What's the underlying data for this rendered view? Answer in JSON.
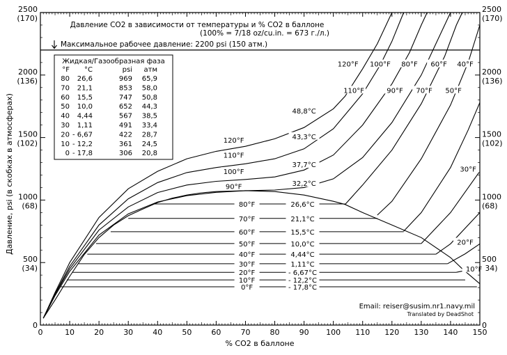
{
  "title": "Давление CO2 в зависимости от температуры и % CO2 в баллоне",
  "subtitle": "(100% = 7/18 oz/cu.in. = 673 г./л.)",
  "max_pressure_note": "Максимальное рабочее давление: 2200 psi (150 атм.)",
  "email": "Email: reiser@susim.nr1.navy.mil",
  "credit": "Translated by DeadShot",
  "legend_table": {
    "title": "Жидкая/Газообразная фаза",
    "headers": [
      "°F",
      "°C",
      "psi",
      "атм"
    ],
    "rows": [
      [
        "80",
        "26,6",
        "969",
        "65,9"
      ],
      [
        "70",
        "21,1",
        "853",
        "58,0"
      ],
      [
        "60",
        "15,5",
        "747",
        "50,8"
      ],
      [
        "50",
        "10,0",
        "652",
        "44,3"
      ],
      [
        "40",
        "4,44",
        "567",
        "38,5"
      ],
      [
        "30",
        "1,11",
        "491",
        "33,4"
      ],
      [
        "20",
        "- 6,67",
        "422",
        "28,7"
      ],
      [
        "10",
        "- 12,2",
        "361",
        "24,5"
      ],
      [
        "0",
        "- 17,8",
        "306",
        "20,8"
      ]
    ]
  },
  "chart_data": {
    "type": "line",
    "xlabel": "% CO2 в баллоне",
    "ylabel": "Давление, psi (в скобках в атмосферах)",
    "xlim": [
      0,
      150
    ],
    "ylim": [
      0,
      2500
    ],
    "x_ticks": [
      "0",
      "10",
      "20",
      "30",
      "40",
      "50",
      "60",
      "70",
      "80",
      "90",
      "100",
      "110",
      "120",
      "130",
      "140",
      "150"
    ],
    "y_ticks_left": [
      {
        "value": 0,
        "psi": "0",
        "atm": ""
      },
      {
        "value": 500,
        "psi": "500",
        "atm": "(34)"
      },
      {
        "value": 1000,
        "psi": "1000",
        "atm": "(68)"
      },
      {
        "value": 1500,
        "psi": "1500",
        "atm": "(102)"
      },
      {
        "value": 2000,
        "psi": "2000",
        "atm": "(136)"
      },
      {
        "value": 2500,
        "psi": "2500",
        "atm": "(170)"
      }
    ],
    "max_working_pressure": 2200,
    "saturation_dome": [
      [
        1,
        55
      ],
      [
        5,
        200
      ],
      [
        10,
        390
      ],
      [
        15,
        565
      ],
      [
        20,
        700
      ],
      [
        25,
        800
      ],
      [
        30,
        875
      ],
      [
        35,
        928
      ],
      [
        40,
        980
      ],
      [
        45,
        1015
      ],
      [
        50,
        1040
      ],
      [
        55,
        1058
      ],
      [
        60,
        1068
      ],
      [
        70,
        1075
      ],
      [
        80,
        1068
      ],
      [
        90,
        1040
      ],
      [
        100,
        990
      ],
      [
        104,
        965
      ],
      [
        110,
        900
      ],
      [
        120,
        800
      ],
      [
        130,
        700
      ],
      [
        140,
        540
      ],
      [
        144,
        450
      ],
      [
        150,
        330
      ]
    ],
    "two_phase_isotherms": [
      {
        "label_f": "80°F",
        "label_c": "26,6°C",
        "psi": 969,
        "x_start": 39,
        "x_end": 104
      },
      {
        "label_f": "70°F",
        "label_c": "21,1°C",
        "psi": 853,
        "x_start": 30,
        "x_end": 115
      },
      {
        "label_f": "60°F",
        "label_c": "15,5°C",
        "psi": 747,
        "x_start": 24,
        "x_end": 124
      },
      {
        "label_f": "50°F",
        "label_c": "10,0°C",
        "psi": 652,
        "x_start": 19,
        "x_end": 130
      },
      {
        "label_f": "40°F",
        "label_c": "4,44°C",
        "psi": 567,
        "x_start": 16,
        "x_end": 135
      },
      {
        "label_f": "30°F",
        "label_c": "1,11°C",
        "psi": 491,
        "x_start": 13,
        "x_end": 139
      },
      {
        "label_f": "20°F",
        "label_c": "- 6,67°C",
        "psi": 422,
        "x_start": 11,
        "x_end": 142
      },
      {
        "label_f": "10°F",
        "label_c": "- 12,2°C",
        "psi": 361,
        "x_start": 9,
        "x_end": 145
      },
      {
        "label_f": "0°F",
        "label_c": "- 17,8°C",
        "psi": 306,
        "x_start": 7,
        "x_end": 149
      }
    ],
    "gas_isotherms": [
      {
        "label_f": "120°F",
        "label_c": "48,8°C",
        "points": [
          [
            1,
            55
          ],
          [
            5,
            260
          ],
          [
            10,
            500
          ],
          [
            20,
            860
          ],
          [
            30,
            1090
          ],
          [
            40,
            1230
          ],
          [
            50,
            1330
          ],
          [
            60,
            1390
          ],
          [
            70,
            1430
          ],
          [
            80,
            1490
          ],
          [
            90,
            1580
          ],
          [
            100,
            1730
          ],
          [
            104,
            1830
          ],
          [
            110,
            2050
          ],
          [
            115,
            2250
          ],
          [
            118,
            2400
          ],
          [
            120,
            2500
          ]
        ]
      },
      {
        "label_f": "110°F",
        "label_c": "43,3°C",
        "points": [
          [
            1,
            55
          ],
          [
            5,
            250
          ],
          [
            10,
            470
          ],
          [
            20,
            800
          ],
          [
            30,
            1010
          ],
          [
            40,
            1140
          ],
          [
            50,
            1220
          ],
          [
            60,
            1260
          ],
          [
            70,
            1290
          ],
          [
            80,
            1330
          ],
          [
            90,
            1410
          ],
          [
            100,
            1570
          ],
          [
            110,
            1850
          ],
          [
            116,
            2080
          ],
          [
            120,
            2270
          ],
          [
            124,
            2500
          ]
        ]
      },
      {
        "label_f": "100°F",
        "label_c": "37,7°C",
        "points": [
          [
            1,
            55
          ],
          [
            5,
            245
          ],
          [
            10,
            450
          ],
          [
            20,
            760
          ],
          [
            30,
            945
          ],
          [
            40,
            1060
          ],
          [
            50,
            1120
          ],
          [
            60,
            1150
          ],
          [
            70,
            1165
          ],
          [
            80,
            1185
          ],
          [
            90,
            1240
          ],
          [
            100,
            1360
          ],
          [
            110,
            1600
          ],
          [
            120,
            1930
          ],
          [
            126,
            2180
          ],
          [
            130,
            2400
          ],
          [
            132,
            2500
          ]
        ]
      },
      {
        "label_f": "90°F",
        "label_c": "32,2°C",
        "points": [
          [
            1,
            55
          ],
          [
            5,
            235
          ],
          [
            10,
            430
          ],
          [
            20,
            720
          ],
          [
            30,
            890
          ],
          [
            40,
            985
          ],
          [
            50,
            1035
          ],
          [
            60,
            1062
          ],
          [
            70,
            1075
          ],
          [
            80,
            1080
          ],
          [
            90,
            1100
          ],
          [
            100,
            1170
          ],
          [
            110,
            1340
          ],
          [
            120,
            1620
          ],
          [
            130,
            2000
          ],
          [
            135,
            2250
          ],
          [
            138,
            2400
          ],
          [
            140,
            2500
          ]
        ]
      },
      {
        "label_f": "",
        "label_c": "",
        "points": [
          [
            104,
            965
          ],
          [
            110,
            1120
          ],
          [
            120,
            1400
          ],
          [
            130,
            1770
          ],
          [
            138,
            2150
          ],
          [
            142,
            2400
          ],
          [
            144,
            2500
          ]
        ]
      },
      {
        "label_f": "",
        "label_c": "",
        "points": [
          [
            115,
            880
          ],
          [
            120,
            990
          ],
          [
            130,
            1330
          ],
          [
            140,
            1760
          ],
          [
            146,
            2100
          ],
          [
            150,
            2400
          ]
        ]
      },
      {
        "label_f": "",
        "label_c": "",
        "points": [
          [
            124,
            750
          ],
          [
            130,
            900
          ],
          [
            140,
            1260
          ],
          [
            146,
            1560
          ],
          [
            150,
            1780
          ]
        ]
      },
      {
        "label_f": "",
        "label_c": "",
        "points": [
          [
            130,
            652
          ],
          [
            140,
            900
          ],
          [
            150,
            1230
          ]
        ]
      },
      {
        "label_f": "",
        "label_c": "",
        "points": [
          [
            135,
            567
          ],
          [
            140,
            650
          ],
          [
            150,
            900
          ]
        ]
      },
      {
        "label_f": "",
        "label_c": "",
        "points": [
          [
            139,
            491
          ],
          [
            145,
            570
          ],
          [
            150,
            650
          ]
        ]
      },
      {
        "label_f": "",
        "label_c": "",
        "points": [
          [
            142,
            422
          ],
          [
            150,
            460
          ]
        ]
      }
    ],
    "isotherm_labels": [
      {
        "text": "120°F",
        "x": 105,
        "y": 2090
      },
      {
        "text": "100°F",
        "x": 116,
        "y": 2090
      },
      {
        "text": "80°F",
        "x": 126,
        "y": 2090
      },
      {
        "text": "60°F",
        "x": 136,
        "y": 2090
      },
      {
        "text": "40°F",
        "x": 145,
        "y": 2090
      },
      {
        "text": "110°F",
        "x": 107,
        "y": 1880
      },
      {
        "text": "90°F",
        "x": 121,
        "y": 1880
      },
      {
        "text": "70°F",
        "x": 131,
        "y": 1880
      },
      {
        "text": "50°F",
        "x": 141,
        "y": 1880
      },
      {
        "text": "30°F",
        "x": 146,
        "y": 1250
      },
      {
        "text": "20°F",
        "x": 145,
        "y": 665
      },
      {
        "text": "10°F",
        "x": 148,
        "y": 450
      }
    ]
  }
}
